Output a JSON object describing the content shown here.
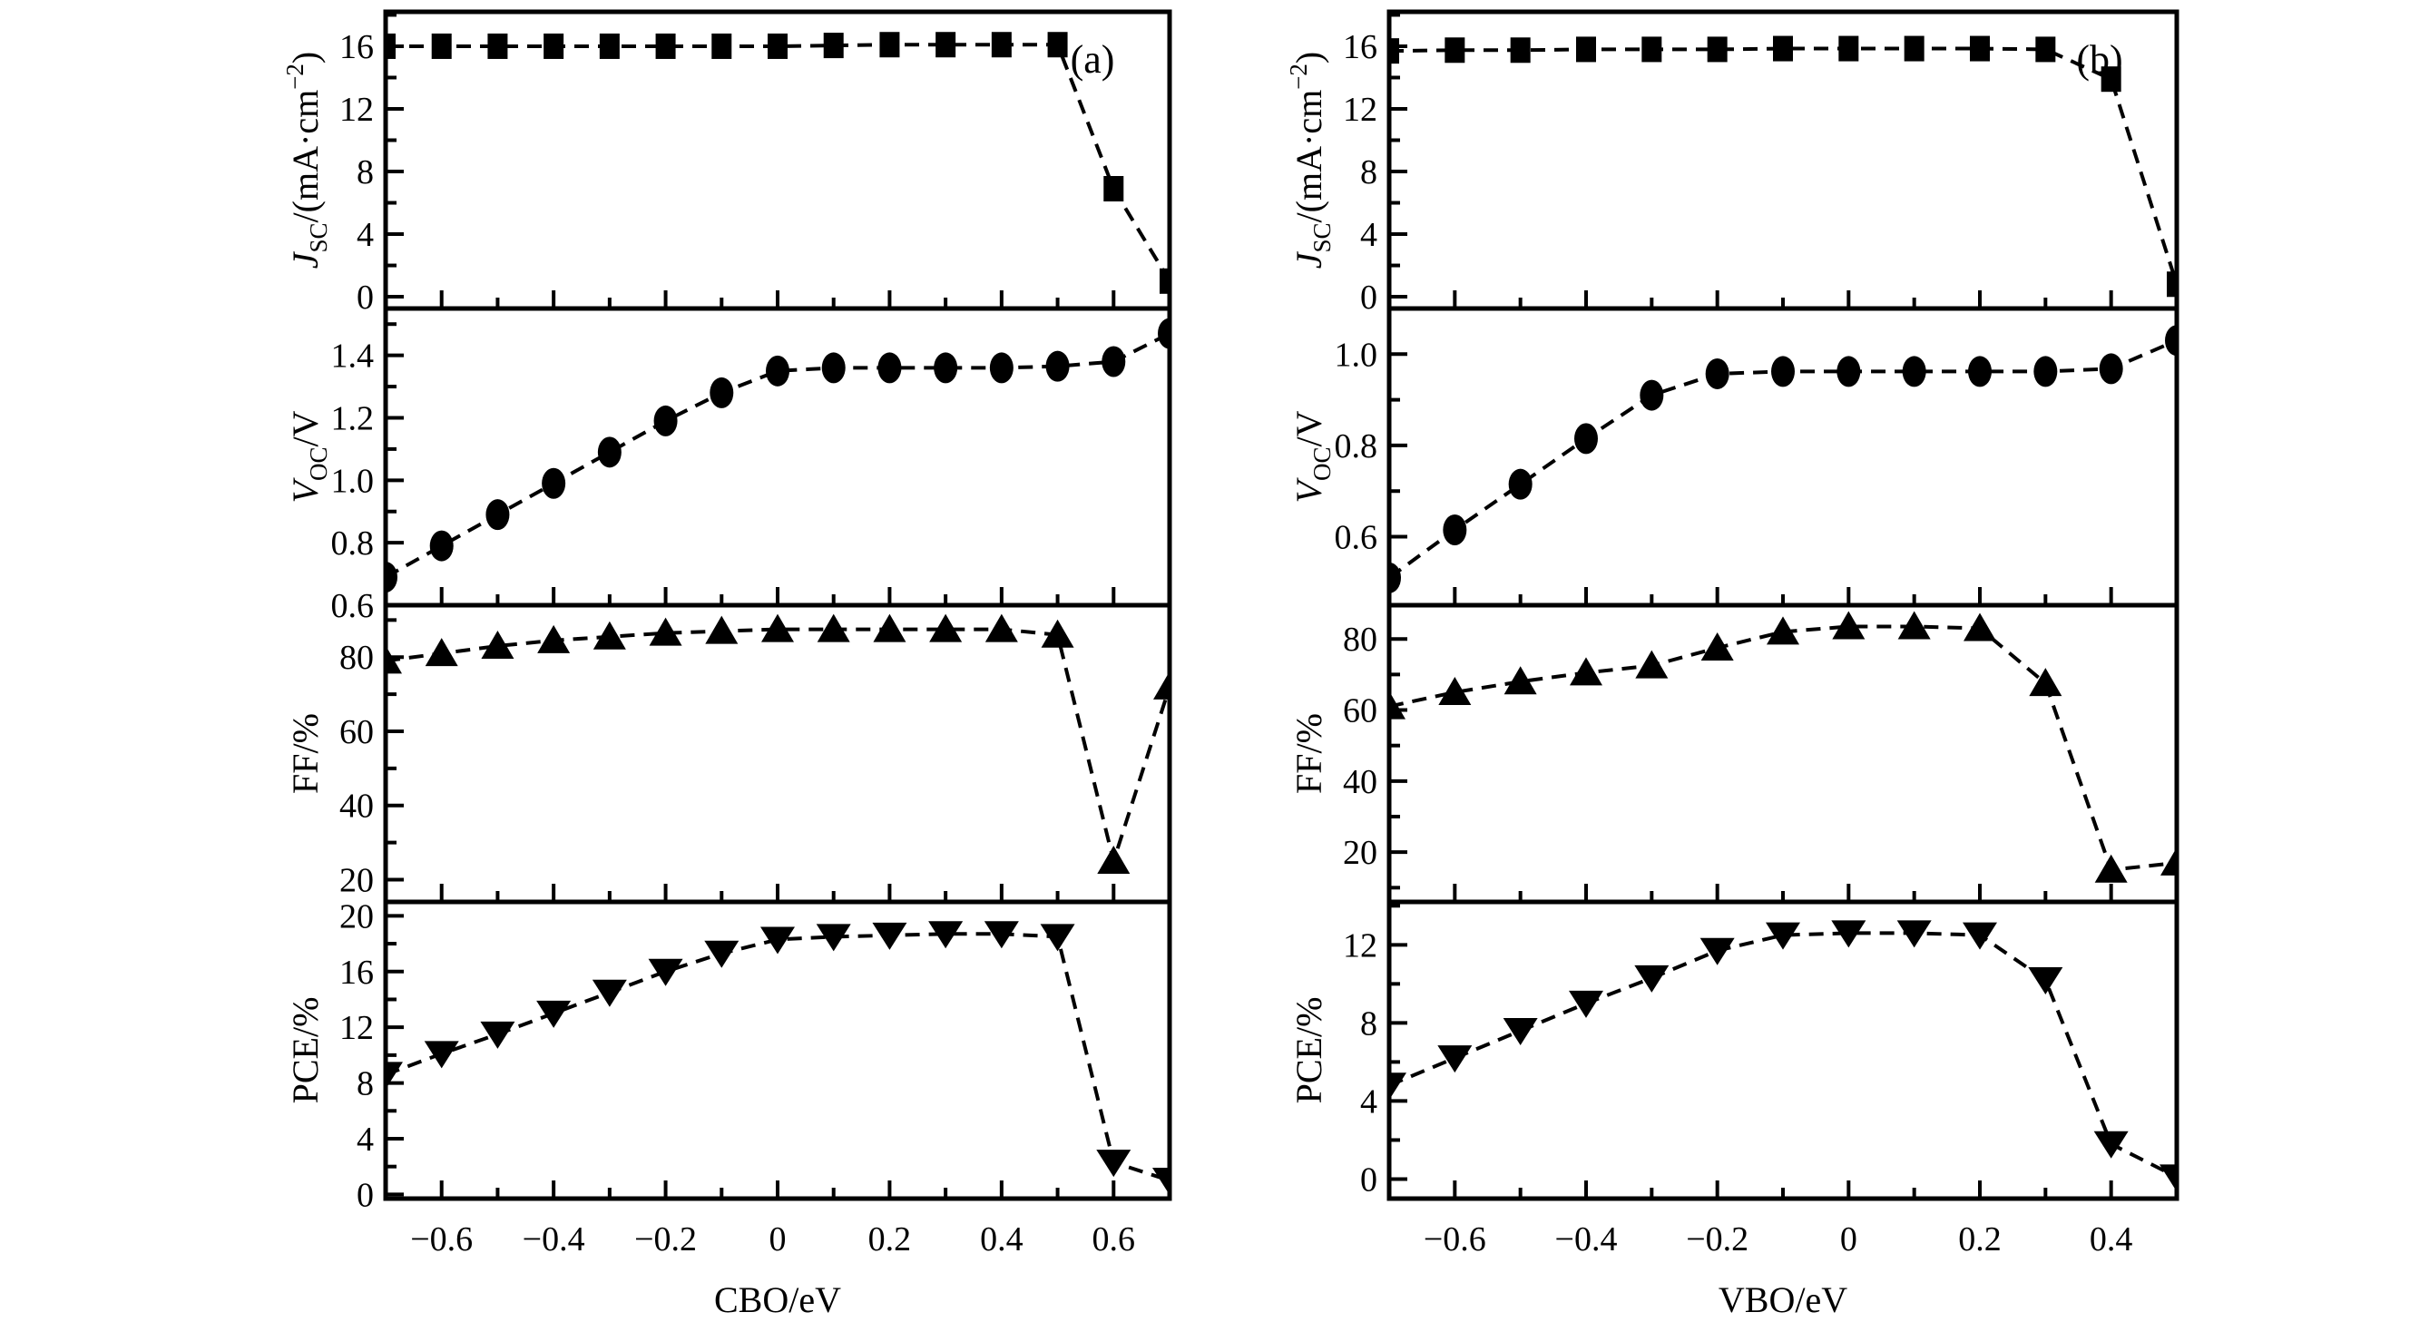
{
  "figure": {
    "background": "#ffffff",
    "ink": "#000000"
  },
  "chart_data": [
    {
      "id": "a",
      "type": "line",
      "panel_label": "(a)",
      "xlabel": "CBO/eV",
      "x_range": [
        -0.7,
        0.7
      ],
      "x_major_ticks": [
        {
          "v": -0.6,
          "label": "−0.6"
        },
        {
          "v": -0.4,
          "label": "−0.4"
        },
        {
          "v": -0.2,
          "label": "−0.2"
        },
        {
          "v": 0,
          "label": "0"
        },
        {
          "v": 0.2,
          "label": "0.2"
        },
        {
          "v": 0.4,
          "label": "0.4"
        },
        {
          "v": 0.6,
          "label": "0.6"
        }
      ],
      "x_minor_ticks": [
        -0.5,
        -0.3,
        -0.1,
        0.1,
        0.3,
        0.5
      ],
      "x": [
        -0.7,
        -0.6,
        -0.5,
        -0.4,
        -0.3,
        -0.2,
        -0.1,
        0,
        0.1,
        0.2,
        0.3,
        0.4,
        0.5,
        0.6,
        0.7
      ],
      "panels": [
        {
          "id": "jsc",
          "marker": "square",
          "ylabel": "JSC/(mA·cm−2)",
          "ylabel_parts": [
            {
              "t": "J",
              "italic": true
            },
            {
              "t": "SC",
              "sub": true
            },
            {
              "t": "/(mA·cm"
            },
            {
              "t": "−2",
              "sup": true
            },
            {
              "t": ")"
            }
          ],
          "y_range": [
            -0.75,
            18.2
          ],
          "y_major_ticks": [
            {
              "v": 0,
              "label": "0"
            },
            {
              "v": 4,
              "label": "4"
            },
            {
              "v": 8,
              "label": "8"
            },
            {
              "v": 12,
              "label": "12"
            },
            {
              "v": 16,
              "label": "16"
            }
          ],
          "y_minor_ticks": [
            2,
            6,
            10,
            14,
            18
          ],
          "values": [
            16,
            16,
            16,
            16,
            16,
            16,
            16,
            16,
            16.05,
            16.1,
            16.1,
            16.1,
            16.1,
            6.9,
            1.0
          ]
        },
        {
          "id": "voc",
          "marker": "circle",
          "ylabel": "VOC/V",
          "ylabel_parts": [
            {
              "t": "V",
              "italic": true
            },
            {
              "t": "OC",
              "sub": true
            },
            {
              "t": "/V"
            }
          ],
          "y_range": [
            0.6,
            1.55
          ],
          "y_major_ticks": [
            {
              "v": 0.6,
              "label": "0.6"
            },
            {
              "v": 0.8,
              "label": "0.8"
            },
            {
              "v": 1.0,
              "label": "1.0"
            },
            {
              "v": 1.2,
              "label": "1.2"
            },
            {
              "v": 1.4,
              "label": "1.4"
            }
          ],
          "y_minor_ticks": [
            0.7,
            0.9,
            1.1,
            1.3,
            1.5
          ],
          "values": [
            0.69,
            0.79,
            0.89,
            0.99,
            1.09,
            1.19,
            1.28,
            1.35,
            1.36,
            1.36,
            1.36,
            1.36,
            1.365,
            1.38,
            1.47
          ]
        },
        {
          "id": "ff",
          "marker": "triangle-up",
          "ylabel": "FF/%",
          "ylabel_parts": [
            {
              "t": "FF/%"
            }
          ],
          "y_range": [
            14,
            94
          ],
          "y_major_ticks": [
            {
              "v": 20,
              "label": "20"
            },
            {
              "v": 40,
              "label": "40"
            },
            {
              "v": 60,
              "label": "60"
            },
            {
              "v": 80,
              "label": "80"
            }
          ],
          "y_minor_ticks": [
            30,
            50,
            70,
            90
          ],
          "values": [
            79,
            81,
            83,
            84.5,
            85.5,
            86.5,
            87,
            87.5,
            87.5,
            87.5,
            87.5,
            87.5,
            86,
            25,
            72
          ]
        },
        {
          "id": "pce",
          "marker": "triangle-down",
          "ylabel": "PCE/%",
          "ylabel_parts": [
            {
              "t": "PCE/%"
            }
          ],
          "y_range": [
            -0.3,
            21
          ],
          "y_major_ticks": [
            {
              "v": 0,
              "label": "0"
            },
            {
              "v": 4,
              "label": "4"
            },
            {
              "v": 8,
              "label": "8"
            },
            {
              "v": 12,
              "label": "12"
            },
            {
              "v": 16,
              "label": "16"
            },
            {
              "v": 20,
              "label": "20"
            }
          ],
          "y_minor_ticks": [
            2,
            6,
            10,
            14,
            18
          ],
          "values": [
            8.6,
            10.1,
            11.5,
            13,
            14.5,
            16,
            17.3,
            18.3,
            18.5,
            18.6,
            18.7,
            18.7,
            18.5,
            2.3,
            1.0
          ]
        }
      ]
    },
    {
      "id": "b",
      "type": "line",
      "panel_label": "(b)",
      "xlabel": "VBO/eV",
      "x_range": [
        -0.7,
        0.5
      ],
      "x_major_ticks": [
        {
          "v": -0.6,
          "label": "−0.6"
        },
        {
          "v": -0.4,
          "label": "−0.4"
        },
        {
          "v": -0.2,
          "label": "−0.2"
        },
        {
          "v": 0,
          "label": "0"
        },
        {
          "v": 0.2,
          "label": "0.2"
        },
        {
          "v": 0.4,
          "label": "0.4"
        }
      ],
      "x_minor_ticks": [
        -0.5,
        -0.3,
        -0.1,
        0.1,
        0.3
      ],
      "x": [
        -0.7,
        -0.6,
        -0.5,
        -0.4,
        -0.3,
        -0.2,
        -0.1,
        0,
        0.1,
        0.2,
        0.3,
        0.4,
        0.5
      ],
      "panels": [
        {
          "id": "jsc",
          "marker": "square",
          "ylabel": "JSC/(mA·cm−2)",
          "ylabel_parts": [
            {
              "t": "J",
              "italic": true
            },
            {
              "t": "SC",
              "sub": true
            },
            {
              "t": "/(mA·cm"
            },
            {
              "t": "−2",
              "sup": true
            },
            {
              "t": ")"
            }
          ],
          "y_range": [
            -0.75,
            18.2
          ],
          "y_major_ticks": [
            {
              "v": 0,
              "label": "0"
            },
            {
              "v": 4,
              "label": "4"
            },
            {
              "v": 8,
              "label": "8"
            },
            {
              "v": 12,
              "label": "12"
            },
            {
              "v": 16,
              "label": "16"
            }
          ],
          "y_minor_ticks": [
            2,
            6,
            10,
            14,
            18
          ],
          "values": [
            15.7,
            15.75,
            15.75,
            15.8,
            15.8,
            15.8,
            15.85,
            15.85,
            15.85,
            15.85,
            15.8,
            13.9,
            0.8
          ]
        },
        {
          "id": "voc",
          "marker": "circle",
          "ylabel": "VOC/V",
          "ylabel_parts": [
            {
              "t": "V",
              "italic": true
            },
            {
              "t": "OC",
              "sub": true
            },
            {
              "t": "/V"
            }
          ],
          "y_range": [
            0.45,
            1.1
          ],
          "y_major_ticks": [
            {
              "v": 0.6,
              "label": "0.6"
            },
            {
              "v": 0.8,
              "label": "0.8"
            },
            {
              "v": 1.0,
              "label": "1.0"
            }
          ],
          "y_minor_ticks": [
            0.5,
            0.7,
            0.9,
            1.1
          ],
          "values": [
            0.51,
            0.615,
            0.715,
            0.815,
            0.91,
            0.957,
            0.962,
            0.962,
            0.962,
            0.962,
            0.962,
            0.968,
            1.03
          ]
        },
        {
          "id": "ff",
          "marker": "triangle-up",
          "ylabel": "FF/%",
          "ylabel_parts": [
            {
              "t": "FF/%"
            }
          ],
          "y_range": [
            6,
            89.5
          ],
          "y_major_ticks": [
            {
              "v": 20,
              "label": "20"
            },
            {
              "v": 40,
              "label": "40"
            },
            {
              "v": 60,
              "label": "60"
            },
            {
              "v": 80,
              "label": "80"
            }
          ],
          "y_minor_ticks": [
            10,
            30,
            50,
            70
          ],
          "values": [
            61,
            65,
            68,
            70.5,
            72.5,
            77.5,
            82,
            83.5,
            83.5,
            83,
            67.5,
            15,
            17
          ]
        },
        {
          "id": "pce",
          "marker": "triangle-down",
          "ylabel": "PCE/%",
          "ylabel_parts": [
            {
              "t": "PCE/%"
            }
          ],
          "y_range": [
            -1.0,
            14.2
          ],
          "y_major_ticks": [
            {
              "v": 0,
              "label": "0"
            },
            {
              "v": 4,
              "label": "4"
            },
            {
              "v": 8,
              "label": "8"
            },
            {
              "v": 12,
              "label": "12"
            }
          ],
          "y_minor_ticks": [
            2,
            6,
            10,
            14
          ],
          "values": [
            4.8,
            6.2,
            7.6,
            9,
            10.3,
            11.7,
            12.5,
            12.6,
            12.6,
            12.5,
            10.2,
            1.8,
            0.1
          ]
        }
      ]
    }
  ]
}
